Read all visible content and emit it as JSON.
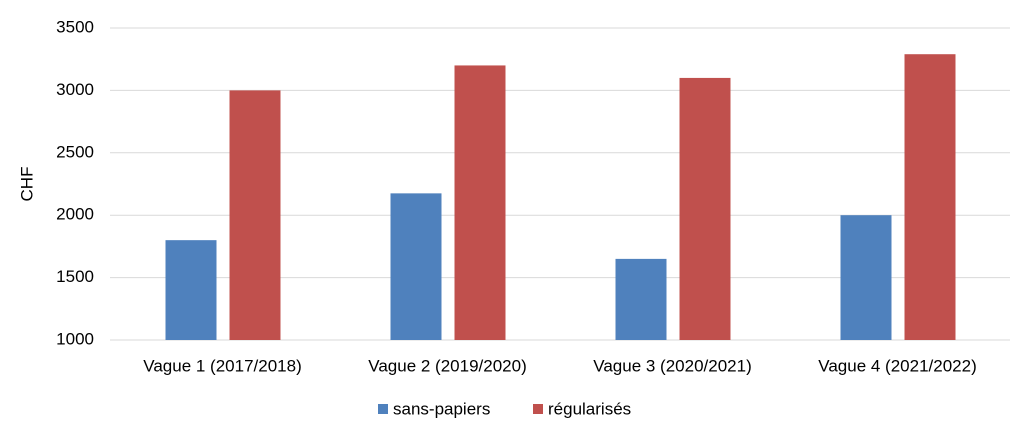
{
  "chart_data": {
    "type": "bar",
    "y_label": "CHF",
    "categories": [
      "Vague 1 (2017/2018)",
      "Vague 2 (2019/2020)",
      "Vague 3 (2020/2021)",
      "Vague 4 (2021/2022)"
    ],
    "series": [
      {
        "name": "sans-papiers",
        "color": "#4f81bd",
        "values": [
          1800,
          2175,
          1650,
          2000
        ]
      },
      {
        "name": "régularisés",
        "color": "#c0504d",
        "values": [
          3000,
          3200,
          3100,
          3290
        ]
      }
    ],
    "ylim": [
      1000,
      3500
    ],
    "yticks": [
      1000,
      1500,
      2000,
      2500,
      3000,
      3500
    ],
    "grid": true,
    "legend": "bottom"
  }
}
